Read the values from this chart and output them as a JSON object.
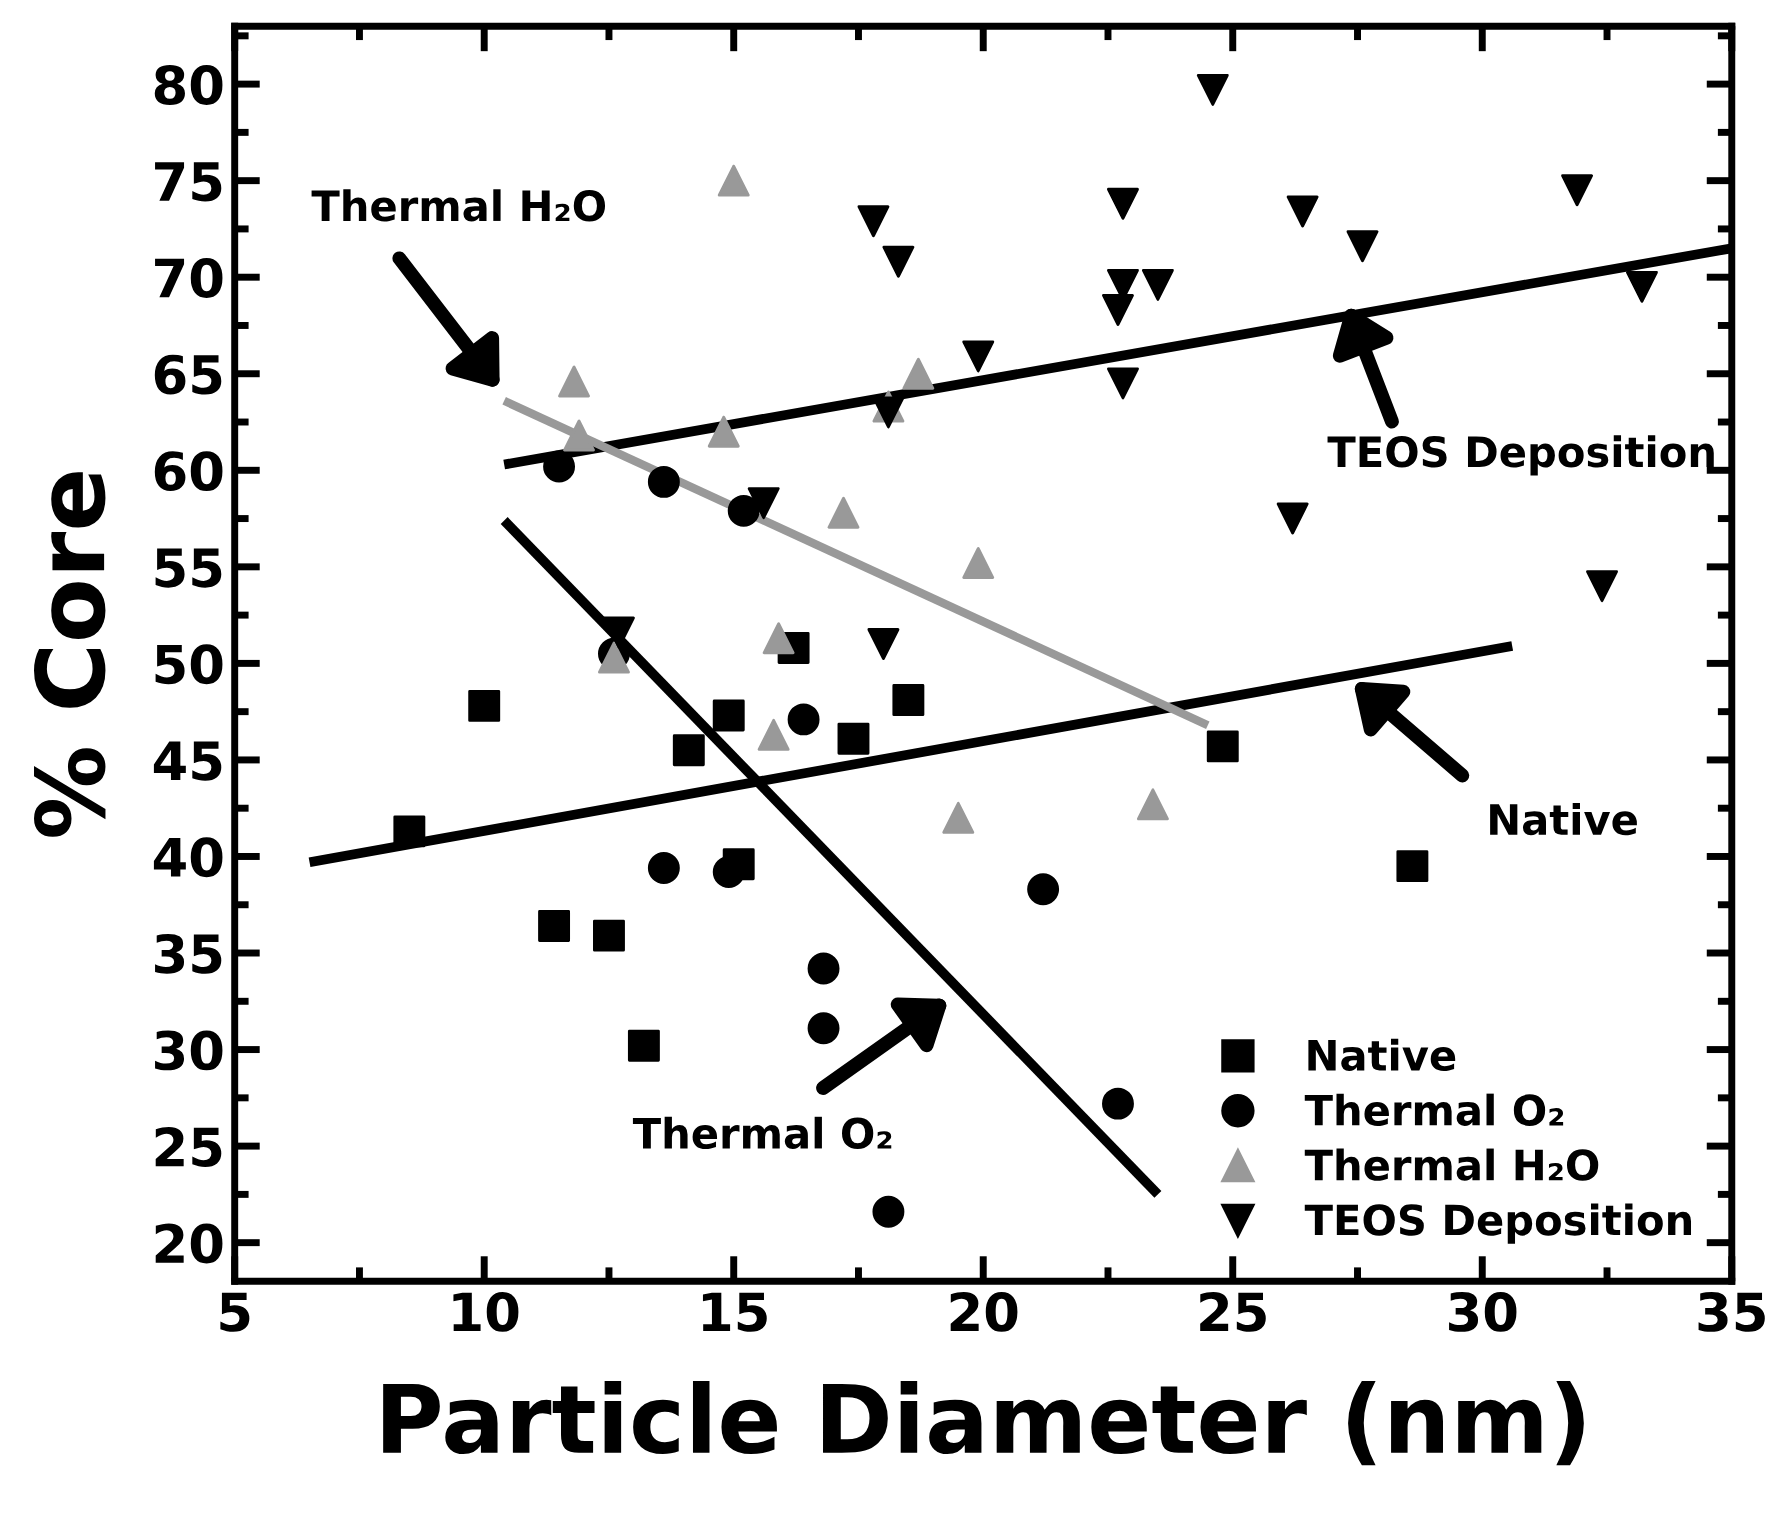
{
  "chart_data": {
    "type": "scatter",
    "xlabel": "Particle Diameter (nm)",
    "ylabel": "% Core",
    "xlim": [
      5,
      35
    ],
    "ylim": [
      18,
      83
    ],
    "xticks": [
      5,
      10,
      15,
      20,
      25,
      30,
      35
    ],
    "yticks": [
      20,
      25,
      30,
      35,
      40,
      45,
      50,
      55,
      60,
      65,
      70,
      75,
      80
    ],
    "grid": false,
    "legend": "bottom right",
    "series": [
      {
        "name": "Native",
        "color": "#000000",
        "marker": "square",
        "x": [
          8.5,
          10,
          11.4,
          12.5,
          13.2,
          14.1,
          14.9,
          15.1,
          16.2,
          17.4,
          18.5,
          24.8,
          28.6
        ],
        "values": [
          41.3,
          47.8,
          36.4,
          35.9,
          30.2,
          45.5,
          47.3,
          39.6,
          50.8,
          46.1,
          48.1,
          45.7,
          39.5
        ]
      },
      {
        "name": "Thermal O₂",
        "color": "#000000",
        "marker": "circle",
        "x": [
          11.5,
          13.6,
          15.2,
          12.6,
          16.4,
          13.6,
          14.9,
          16.8,
          16.8,
          18.1,
          21.2,
          22.7
        ],
        "values": [
          60.2,
          59.4,
          57.9,
          50.5,
          47.1,
          39.4,
          39.2,
          34.2,
          31.1,
          21.6,
          38.3,
          27.2
        ]
      },
      {
        "name": "Thermal H₂O",
        "color": "#999999",
        "marker": "triangle",
        "x": [
          11.8,
          11.9,
          15,
          14.8,
          18.7,
          18.1,
          12.6,
          15.9,
          17.2,
          15.8,
          19.9,
          19.5,
          23.4
        ],
        "values": [
          64.6,
          61.8,
          75,
          62,
          65,
          63.3,
          50.3,
          51.3,
          57.8,
          46.3,
          55.2,
          42,
          42.7
        ]
      },
      {
        "name": "TEOS Deposition",
        "color": "#000000",
        "marker": "triangle_down",
        "x": [
          24.6,
          17.8,
          18.3,
          22.8,
          26.4,
          27.6,
          31.9,
          22.7,
          22.8,
          23.5,
          33.2,
          19.9,
          22.8,
          18.1,
          26.2,
          32.4,
          15.6,
          12.7,
          18
        ],
        "values": [
          79.7,
          72.9,
          70.8,
          73.8,
          73.4,
          71.6,
          74.5,
          68.3,
          69.6,
          69.6,
          69.5,
          65.9,
          64.5,
          63,
          57.5,
          54,
          58.3,
          51.6,
          51
        ]
      },
      {
        "type": "line",
        "color": "#000000",
        "x": [
          10.4,
          35
        ],
        "values": [
          60.3,
          71.5
        ]
      },
      {
        "type": "line",
        "color": "#000000",
        "x": [
          6.5,
          30.6
        ],
        "values": [
          39.7,
          50.9
        ]
      },
      {
        "type": "line",
        "color": "#000000",
        "x": [
          10.4,
          23.5
        ],
        "values": [
          57.4,
          22.5
        ]
      },
      {
        "type": "line",
        "color": "#999999",
        "x": [
          10.4,
          24.5
        ],
        "values": [
          63.6,
          46.8
        ]
      }
    ],
    "annotations": [
      "Thermal H₂O",
      "TEOS Deposition",
      "Native",
      "Thermal O₂"
    ]
  }
}
